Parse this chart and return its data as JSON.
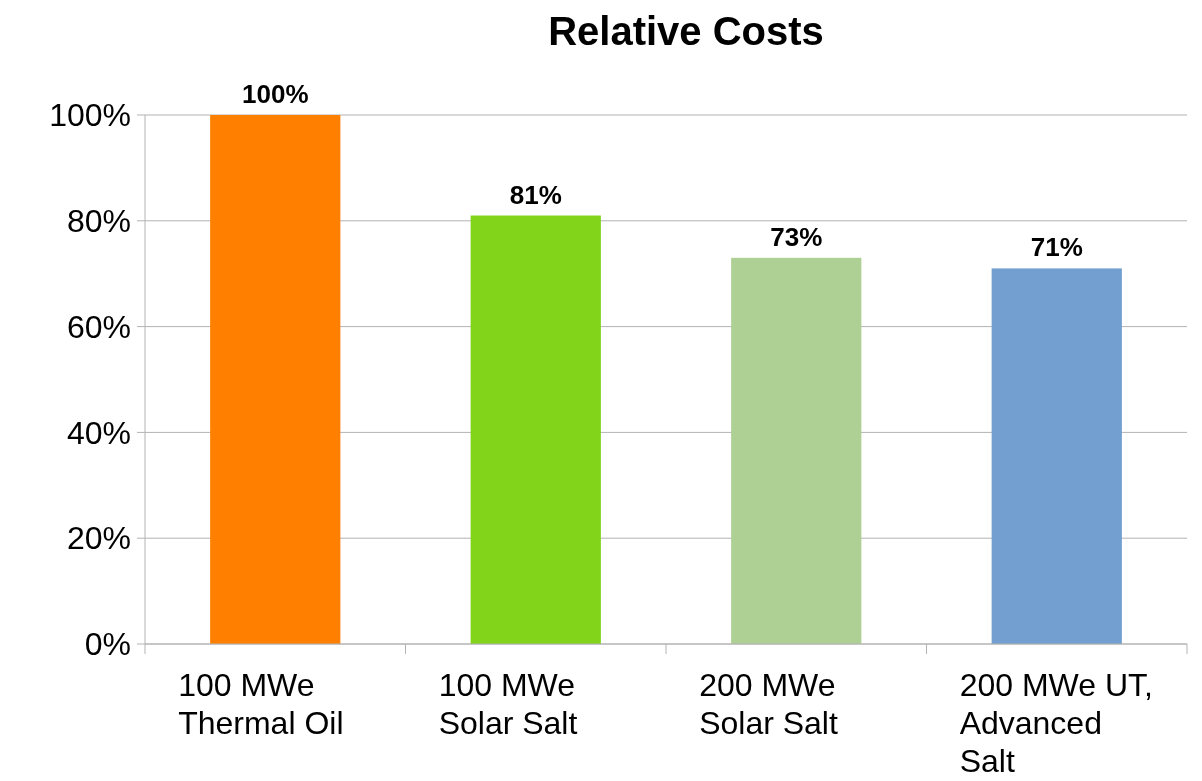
{
  "chart_data": {
    "type": "bar",
    "title": "Relative Costs",
    "categories": [
      "100 MWe Thermal Oil",
      "100 MWe Solar Salt",
      "200 MWe Solar Salt",
      "200 MWe UT, Advanced Salt"
    ],
    "values": [
      100,
      81,
      73,
      71
    ],
    "colors": [
      "#ff8000",
      "#81d41a",
      "#afd095",
      "#729fcf"
    ],
    "ylim": [
      0,
      100
    ],
    "yticks": [
      {
        "value": 0,
        "label": "0%"
      },
      {
        "value": 20,
        "label": "20%"
      },
      {
        "value": 40,
        "label": "40%"
      },
      {
        "value": 60,
        "label": "60%"
      },
      {
        "value": 80,
        "label": "80%"
      },
      {
        "value": 100,
        "label": "100%"
      }
    ],
    "value_labels": [
      "100%",
      "81%",
      "73%",
      "71%"
    ],
    "grid": "y"
  }
}
